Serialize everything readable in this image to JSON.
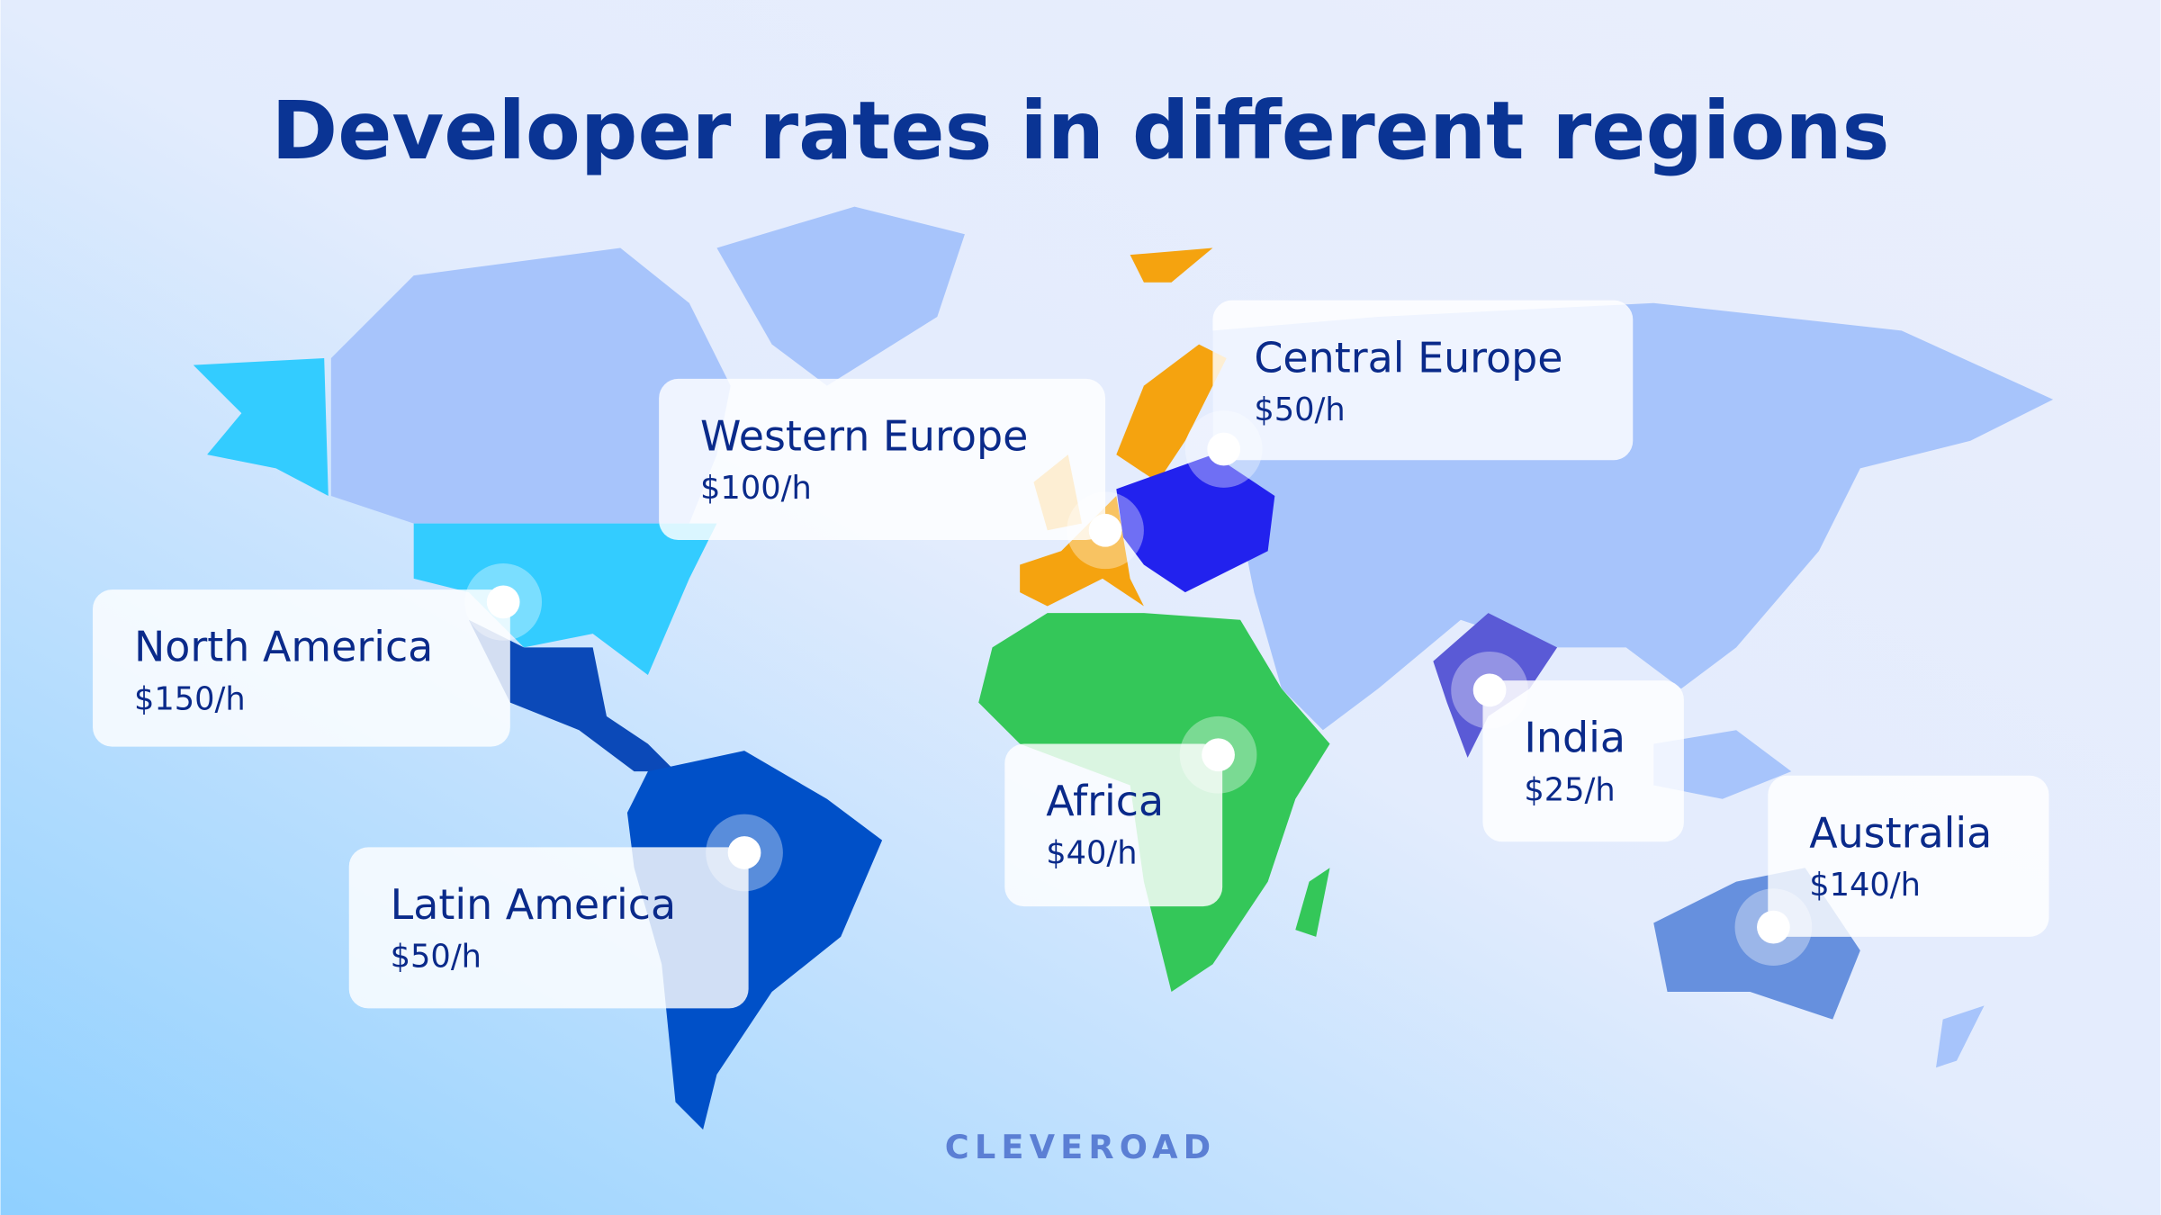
{
  "title": "Developer rates in different regions",
  "regions": [
    {
      "name": "North America",
      "rate": "$150/h"
    },
    {
      "name": "Latin America",
      "rate": "$50/h"
    },
    {
      "name": "Western Europe",
      "rate": "$100/h"
    },
    {
      "name": "Central Europe",
      "rate": "$50/h"
    },
    {
      "name": "Africa",
      "rate": "$40/h"
    },
    {
      "name": "India",
      "rate": "$25/h"
    },
    {
      "name": "Australia",
      "rate": "$140/h"
    }
  ],
  "brand": "CLEVEROAD"
}
